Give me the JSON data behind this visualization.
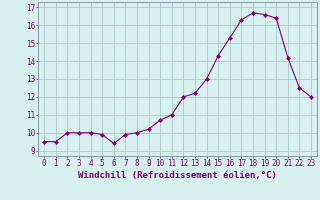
{
  "x": [
    0,
    1,
    2,
    3,
    4,
    5,
    6,
    7,
    8,
    9,
    10,
    11,
    12,
    13,
    14,
    15,
    16,
    17,
    18,
    19,
    20,
    21,
    22,
    23
  ],
  "y": [
    9.5,
    9.5,
    10.0,
    10.0,
    10.0,
    9.9,
    9.4,
    9.9,
    10.0,
    10.2,
    10.7,
    11.0,
    12.0,
    12.2,
    13.0,
    14.3,
    15.3,
    16.3,
    16.7,
    16.6,
    16.4,
    14.2,
    12.5,
    12.0
  ],
  "line_color": "#800080",
  "marker": "D",
  "marker_size": 2.0,
  "bg_color": "#d8f0f0",
  "grid_color": "#aacccc",
  "xlabel": "Windchill (Refroidissement éolien,°C)",
  "xlabel_fontsize": 6.5,
  "tick_fontsize": 5.5,
  "ylabel_ticks": [
    9,
    10,
    11,
    12,
    13,
    14,
    15,
    16,
    17
  ],
  "ylim": [
    8.7,
    17.3
  ],
  "xlim": [
    -0.5,
    23.5
  ]
}
